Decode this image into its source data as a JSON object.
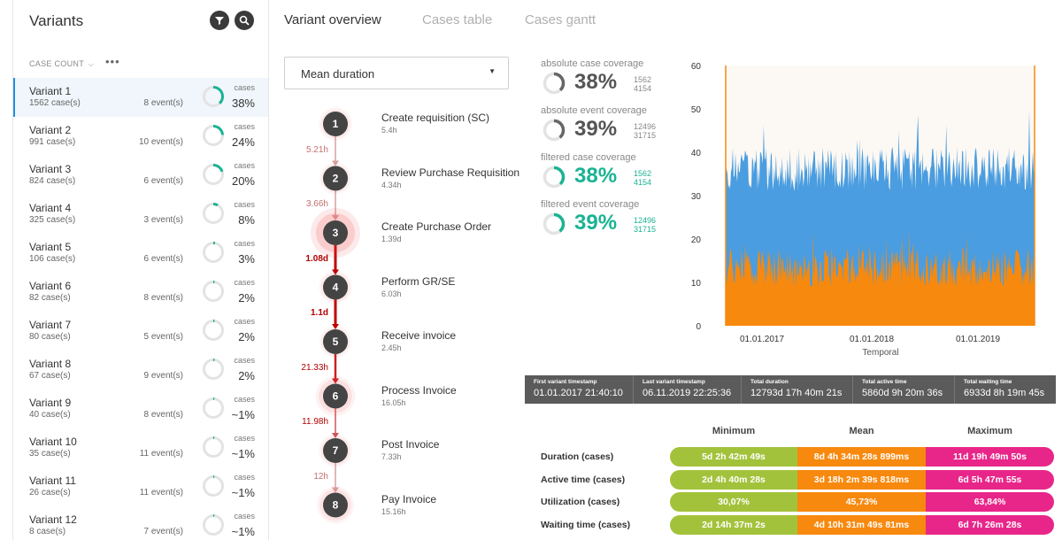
{
  "sidebar": {
    "title": "Variants",
    "sort_label": "CASE COUNT",
    "more_label": "•••",
    "variants": [
      {
        "name": "Variant 1",
        "cases": "1562 case(s)",
        "events": "8 event(s)",
        "cases_label": "cases",
        "pct": "38%",
        "fraction": 0.38
      },
      {
        "name": "Variant 2",
        "cases": "991 case(s)",
        "events": "10 event(s)",
        "cases_label": "cases",
        "pct": "24%",
        "fraction": 0.24
      },
      {
        "name": "Variant 3",
        "cases": "824 case(s)",
        "events": "6 event(s)",
        "cases_label": "cases",
        "pct": "20%",
        "fraction": 0.2
      },
      {
        "name": "Variant 4",
        "cases": "325 case(s)",
        "events": "3 event(s)",
        "cases_label": "cases",
        "pct": "8%",
        "fraction": 0.08
      },
      {
        "name": "Variant 5",
        "cases": "106 case(s)",
        "events": "6 event(s)",
        "cases_label": "cases",
        "pct": "3%",
        "fraction": 0.03
      },
      {
        "name": "Variant 6",
        "cases": "82 case(s)",
        "events": "8 event(s)",
        "cases_label": "cases",
        "pct": "2%",
        "fraction": 0.02
      },
      {
        "name": "Variant 7",
        "cases": "80 case(s)",
        "events": "5 event(s)",
        "cases_label": "cases",
        "pct": "2%",
        "fraction": 0.02
      },
      {
        "name": "Variant 8",
        "cases": "67 case(s)",
        "events": "9 event(s)",
        "cases_label": "cases",
        "pct": "2%",
        "fraction": 0.02
      },
      {
        "name": "Variant 9",
        "cases": "40 case(s)",
        "events": "8 event(s)",
        "cases_label": "cases",
        "pct": "~1%",
        "fraction": 0.01
      },
      {
        "name": "Variant 10",
        "cases": "35 case(s)",
        "events": "11 event(s)",
        "cases_label": "cases",
        "pct": "~1%",
        "fraction": 0.01
      },
      {
        "name": "Variant 11",
        "cases": "26 case(s)",
        "events": "11 event(s)",
        "cases_label": "cases",
        "pct": "~1%",
        "fraction": 0.01
      },
      {
        "name": "Variant 12",
        "cases": "8 case(s)",
        "events": "7 event(s)",
        "cases_label": "cases",
        "pct": "~1%",
        "fraction": 0.01
      }
    ]
  },
  "tabs": [
    "Variant overview",
    "Cases table",
    "Cases gantt"
  ],
  "dropdown": {
    "value": "Mean duration"
  },
  "process": {
    "steps": [
      {
        "num": "1",
        "label": "Create requisition (SC)",
        "duration": "5.4h"
      },
      {
        "num": "2",
        "label": "Review Purchase Requisition",
        "duration": "4.34h"
      },
      {
        "num": "3",
        "label": "Create Purchase Order",
        "duration": "1.39d"
      },
      {
        "num": "4",
        "label": "Perform GR/SE",
        "duration": "6.03h"
      },
      {
        "num": "5",
        "label": "Receive invoice",
        "duration": "2.45h"
      },
      {
        "num": "6",
        "label": "Process Invoice",
        "duration": "16.05h"
      },
      {
        "num": "7",
        "label": "Post Invoice",
        "duration": "7.33h"
      },
      {
        "num": "8",
        "label": "Pay Invoice",
        "duration": "15.16h"
      }
    ],
    "edges": [
      "5.21h",
      "3.66h",
      "1.08d",
      "1.1d",
      "21.33h",
      "11.98h",
      "12h"
    ],
    "edge_colors": [
      "#d9a0a0",
      "#d9a0a0",
      "#c00000",
      "#c00000",
      "#cc2020",
      "#d05555",
      "#d9a0a0"
    ]
  },
  "coverage": [
    {
      "title": "absolute case coverage",
      "pct": "38%",
      "num": "1562",
      "den": "4154",
      "fraction": 0.38,
      "color": "#555555"
    },
    {
      "title": "absolute event coverage",
      "pct": "39%",
      "num": "12496",
      "den": "31715",
      "fraction": 0.39,
      "color": "#555555"
    },
    {
      "title": "filtered case coverage",
      "pct": "38%",
      "num": "1562",
      "den": "4154",
      "fraction": 0.38,
      "color": "#1ab394"
    },
    {
      "title": "filtered event coverage",
      "pct": "39%",
      "num": "12496",
      "den": "31715",
      "fraction": 0.39,
      "color": "#1ab394"
    }
  ],
  "chart_data": {
    "type": "area",
    "xlabel": "Temporal",
    "x_ticks": [
      "01.01.2017",
      "01.01.2018",
      "01.01.2019"
    ],
    "y_ticks": [
      "0",
      "10",
      "20",
      "30",
      "40",
      "50",
      "60"
    ],
    "ylim": [
      0,
      60
    ],
    "series": [
      {
        "color": "#4a9de0",
        "approx_mean": 37,
        "approx_range": [
          28,
          50
        ]
      },
      {
        "color": "#f7890e",
        "approx_mean": 16,
        "approx_range": [
          8,
          25
        ]
      }
    ],
    "grid": false
  },
  "stats": [
    {
      "label": "First variant timestamp",
      "value": "01.01.2017 21:40:10"
    },
    {
      "label": "Last variant timestamp",
      "value": "06.11.2019 22:25:36"
    },
    {
      "label": "Total duration",
      "value": "12793d 17h 40m 21s"
    },
    {
      "label": "Total active time",
      "value": "5860d 9h 20m 36s"
    },
    {
      "label": "Total waiting time",
      "value": "6933d 8h 19m 45s"
    }
  ],
  "metrics": {
    "headers": [
      "Minimum",
      "Mean",
      "Maximum"
    ],
    "rows": [
      {
        "label": "Duration (cases)",
        "min": "5d 2h 42m 49s",
        "mean": "8d 4h 34m 28s 899ms",
        "max": "11d 19h 49m 50s"
      },
      {
        "label": "Active time (cases)",
        "min": "2d 4h 40m 28s",
        "mean": "3d 18h 2m 39s 818ms",
        "max": "6d 5h 47m 55s"
      },
      {
        "label": "Utilization (cases)",
        "min": "30,07%",
        "mean": "45,73%",
        "max": "63,84%"
      },
      {
        "label": "Waiting time (cases)",
        "min": "2d 14h 37m 2s",
        "mean": "4d 10h 31m 49s 81ms",
        "max": "6d 7h 26m 28s"
      }
    ]
  }
}
